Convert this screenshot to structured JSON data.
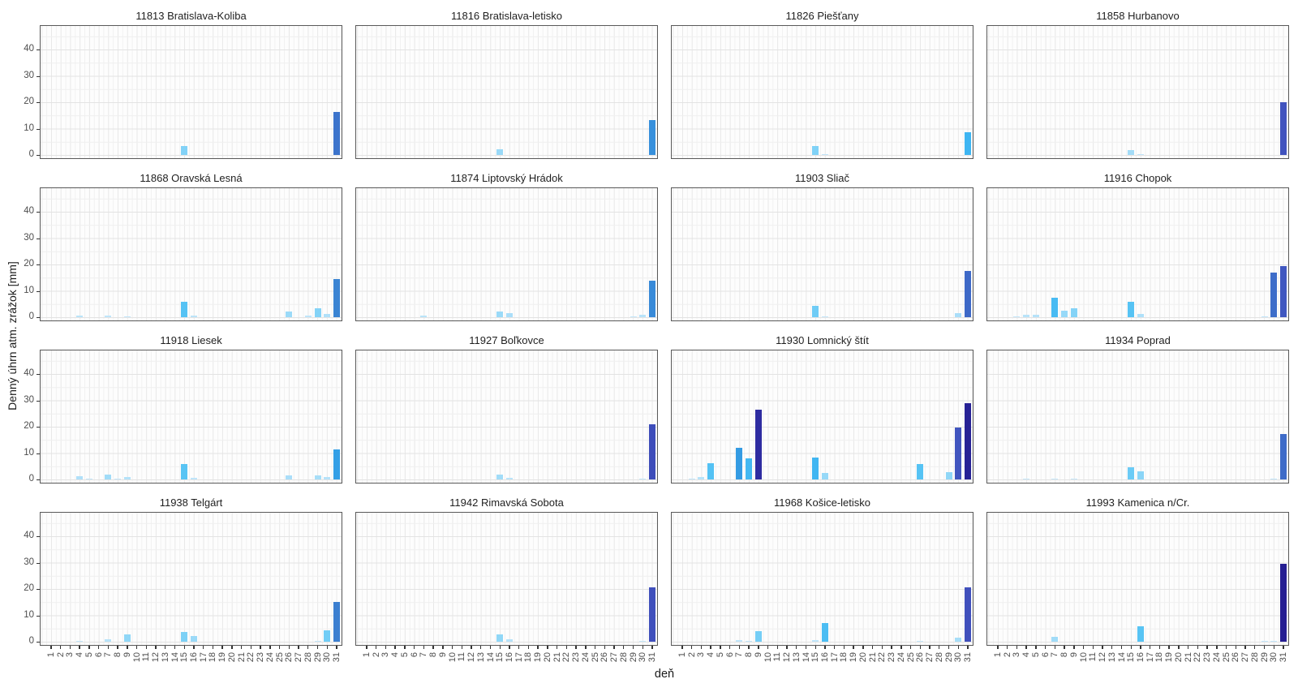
{
  "figure": {
    "ylabel": "Denný úhrn atm. zrážok [mm]",
    "xlabel": "deň"
  },
  "chart_data": {
    "type": "bar",
    "layout": "facet-grid-4x4",
    "x": {
      "label": "deň",
      "ticks": [
        1,
        2,
        3,
        4,
        5,
        6,
        7,
        8,
        9,
        10,
        11,
        12,
        13,
        14,
        15,
        16,
        17,
        18,
        19,
        20,
        21,
        22,
        23,
        24,
        25,
        26,
        27,
        28,
        29,
        30,
        31
      ],
      "range": [
        1,
        31
      ]
    },
    "y": {
      "label": "Denný úhrn atm. zrážok [mm]",
      "ticks": [
        0,
        10,
        20,
        30,
        40
      ],
      "lim": [
        0,
        47
      ]
    },
    "grid": "on",
    "legend": "none",
    "color_scale": {
      "description": "bar fill mapped to daily precipitation value, light blue (low) to dark navy (high)",
      "stops": [
        {
          "value": 0,
          "color": "#C9E8FA"
        },
        {
          "value": 5,
          "color": "#60C8F5"
        },
        {
          "value": 10,
          "color": "#2FADF0"
        },
        {
          "value": 15,
          "color": "#3B7FD0"
        },
        {
          "value": 20,
          "color": "#4153BE"
        },
        {
          "value": 25,
          "color": "#3233A8"
        },
        {
          "value": 30,
          "color": "#241C8F"
        }
      ]
    },
    "panels": [
      {
        "title": "11813 Bratislava-Koliba",
        "bars": [
          {
            "day": 15,
            "value": 3.4
          },
          {
            "day": 31,
            "value": 16.2
          }
        ]
      },
      {
        "title": "11816 Bratislava-letisko",
        "bars": [
          {
            "day": 15,
            "value": 2.3
          },
          {
            "day": 31,
            "value": 13.2
          }
        ]
      },
      {
        "title": "11826 Piešťany",
        "bars": [
          {
            "day": 15,
            "value": 3.5
          },
          {
            "day": 16,
            "value": 0.3
          },
          {
            "day": 31,
            "value": 8.5
          }
        ]
      },
      {
        "title": "11858 Hurbanovo",
        "bars": [
          {
            "day": 15,
            "value": 1.8
          },
          {
            "day": 16,
            "value": 0.4
          },
          {
            "day": 31,
            "value": 20.0
          }
        ]
      },
      {
        "title": "11868 Oravská Lesná",
        "bars": [
          {
            "day": 4,
            "value": 0.7
          },
          {
            "day": 7,
            "value": 0.5
          },
          {
            "day": 9,
            "value": 0.4
          },
          {
            "day": 15,
            "value": 6.0
          },
          {
            "day": 16,
            "value": 0.6
          },
          {
            "day": 26,
            "value": 2.2
          },
          {
            "day": 28,
            "value": 0.5
          },
          {
            "day": 29,
            "value": 3.3
          },
          {
            "day": 30,
            "value": 1.2
          },
          {
            "day": 31,
            "value": 14.5
          }
        ]
      },
      {
        "title": "11874 Liptovský Hrádok",
        "bars": [
          {
            "day": 7,
            "value": 0.7
          },
          {
            "day": 15,
            "value": 2.2
          },
          {
            "day": 16,
            "value": 1.5
          },
          {
            "day": 29,
            "value": 0.3
          },
          {
            "day": 30,
            "value": 0.8
          },
          {
            "day": 31,
            "value": 13.8
          }
        ]
      },
      {
        "title": "11903 Sliač",
        "bars": [
          {
            "day": 15,
            "value": 4.3
          },
          {
            "day": 16,
            "value": 0.3
          },
          {
            "day": 30,
            "value": 1.5
          },
          {
            "day": 31,
            "value": 17.5
          }
        ]
      },
      {
        "title": "11916 Chopok",
        "bars": [
          {
            "day": 3,
            "value": 0.3
          },
          {
            "day": 4,
            "value": 0.8
          },
          {
            "day": 5,
            "value": 0.9
          },
          {
            "day": 7,
            "value": 7.5
          },
          {
            "day": 8,
            "value": 2.4
          },
          {
            "day": 9,
            "value": 3.3
          },
          {
            "day": 15,
            "value": 6.0
          },
          {
            "day": 16,
            "value": 1.3
          },
          {
            "day": 29,
            "value": 0.4
          },
          {
            "day": 30,
            "value": 17.0
          },
          {
            "day": 31,
            "value": 19.5
          }
        ]
      },
      {
        "title": "11918 Liesek",
        "bars": [
          {
            "day": 4,
            "value": 1.2
          },
          {
            "day": 5,
            "value": 0.3
          },
          {
            "day": 7,
            "value": 1.9
          },
          {
            "day": 8,
            "value": 0.2
          },
          {
            "day": 9,
            "value": 1.0
          },
          {
            "day": 15,
            "value": 5.8
          },
          {
            "day": 16,
            "value": 0.5
          },
          {
            "day": 26,
            "value": 1.5
          },
          {
            "day": 29,
            "value": 1.6
          },
          {
            "day": 30,
            "value": 0.9
          },
          {
            "day": 31,
            "value": 11.5
          }
        ]
      },
      {
        "title": "11927 Boľkovce",
        "bars": [
          {
            "day": 15,
            "value": 1.9
          },
          {
            "day": 16,
            "value": 0.7
          },
          {
            "day": 30,
            "value": 0.3
          },
          {
            "day": 31,
            "value": 21.0
          }
        ]
      },
      {
        "title": "11930 Lomnický štít",
        "bars": [
          {
            "day": 2,
            "value": 0.4
          },
          {
            "day": 3,
            "value": 0.8
          },
          {
            "day": 4,
            "value": 6.2
          },
          {
            "day": 7,
            "value": 12.0
          },
          {
            "day": 8,
            "value": 8.0
          },
          {
            "day": 9,
            "value": 26.5
          },
          {
            "day": 15,
            "value": 8.3
          },
          {
            "day": 16,
            "value": 2.4
          },
          {
            "day": 26,
            "value": 6.0
          },
          {
            "day": 29,
            "value": 2.7
          },
          {
            "day": 30,
            "value": 19.8
          },
          {
            "day": 31,
            "value": 28.8
          }
        ]
      },
      {
        "title": "11934 Poprad",
        "bars": [
          {
            "day": 4,
            "value": 0.2
          },
          {
            "day": 7,
            "value": 0.2
          },
          {
            "day": 9,
            "value": 0.2
          },
          {
            "day": 15,
            "value": 4.5
          },
          {
            "day": 16,
            "value": 3.0
          },
          {
            "day": 30,
            "value": 0.4
          },
          {
            "day": 31,
            "value": 17.3
          }
        ]
      },
      {
        "title": "11938 Telgárt",
        "bars": [
          {
            "day": 4,
            "value": 0.4
          },
          {
            "day": 7,
            "value": 0.8
          },
          {
            "day": 9,
            "value": 2.7
          },
          {
            "day": 15,
            "value": 3.6
          },
          {
            "day": 16,
            "value": 2.2
          },
          {
            "day": 29,
            "value": 0.2
          },
          {
            "day": 30,
            "value": 4.2
          },
          {
            "day": 31,
            "value": 15.0
          }
        ]
      },
      {
        "title": "11942 Rimavská Sobota",
        "bars": [
          {
            "day": 15,
            "value": 2.7
          },
          {
            "day": 16,
            "value": 0.9
          },
          {
            "day": 30,
            "value": 0.2
          },
          {
            "day": 31,
            "value": 20.5
          }
        ]
      },
      {
        "title": "11968 Košice-letisko",
        "bars": [
          {
            "day": 7,
            "value": 0.5
          },
          {
            "day": 8,
            "value": 0.4
          },
          {
            "day": 9,
            "value": 4.0
          },
          {
            "day": 15,
            "value": 0.5
          },
          {
            "day": 16,
            "value": 7.0
          },
          {
            "day": 26,
            "value": 0.2
          },
          {
            "day": 30,
            "value": 1.6
          },
          {
            "day": 31,
            "value": 20.5
          }
        ]
      },
      {
        "title": "11993 Kamenica n/Cr.",
        "bars": [
          {
            "day": 7,
            "value": 1.9
          },
          {
            "day": 16,
            "value": 5.8
          },
          {
            "day": 29,
            "value": 0.3
          },
          {
            "day": 30,
            "value": 0.3
          },
          {
            "day": 31,
            "value": 29.5
          }
        ]
      }
    ]
  }
}
